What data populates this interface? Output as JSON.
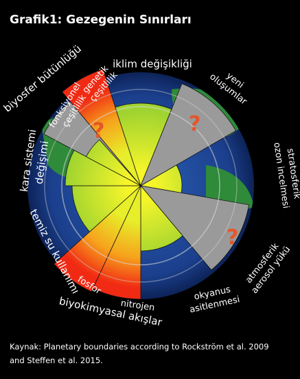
{
  "title": "Grafik1: Gezegenin Sınırları",
  "labels": {
    "climate": "iklim değişikliği",
    "new_entities": [
      "yeni",
      "oluşumlar"
    ],
    "ozone": [
      "stratosferik",
      "ozon incelmesi"
    ],
    "aerosol": [
      "atmosferik",
      "aerosol yükü"
    ],
    "ocean": [
      "okyanus",
      "asitlenmesi"
    ],
    "nitrogen": "nitrojen",
    "phosphorus": "fosfor",
    "biogeochemical": "biyokimyasal akışlar",
    "freshwater": "temiz su kullanımı",
    "land": [
      "kara sistemi",
      "değişimi"
    ],
    "biosphere": "biyosfer bütünlüğü",
    "functional": [
      "fonksiyonel",
      "çeşitlilik"
    ],
    "genetic": [
      "genetik",
      "çeşitlilik"
    ]
  },
  "question_mark": "?",
  "caption": [
    "Kaynak: Planetary boundaries according to Rockström et al. 2009",
    "and Steffen et al. 2015."
  ]
}
